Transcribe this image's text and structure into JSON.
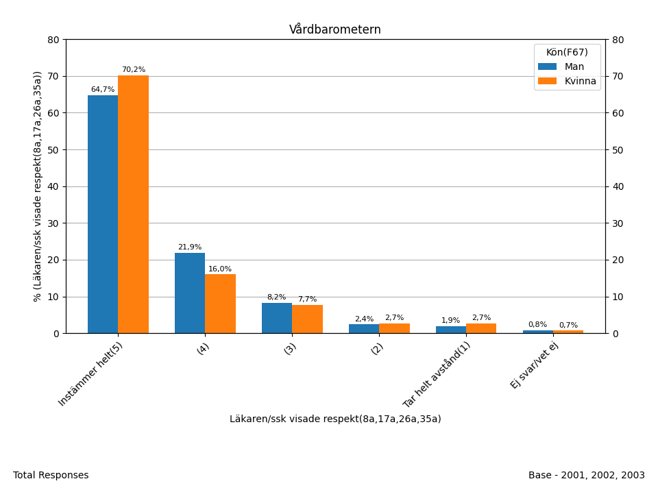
{
  "chart_data": {
    "type": "bar",
    "title": "Vårdbarometern",
    "x_label": "Läkaren/ssk visade respekt(8a,17a,26a,35a)",
    "y_label": "% (Läkaren/ssk visade respekt(8a,17a,26a,35a))",
    "categories": [
      "Instämmer helt(5)",
      "(4)",
      "(3)",
      "(2)",
      "Tar helt avstånd(1)",
      "Ej svar/vet ej"
    ],
    "series": [
      {
        "name": "Man",
        "values": [
          64.7,
          21.9,
          8.2,
          2.4,
          1.9,
          0.8
        ],
        "value_labels": [
          "64,7%",
          "21,9%",
          "8,2%",
          "2,4%",
          "1,9%",
          "0,8%"
        ]
      },
      {
        "name": "Kvinna",
        "values": [
          70.2,
          16.0,
          7.7,
          2.7,
          2.7,
          0.7
        ],
        "value_labels": [
          "70,2%",
          "16,0%",
          "7,7%",
          "2,7%",
          "2,7%",
          "0,7%"
        ]
      }
    ],
    "ylim": [
      0,
      80
    ],
    "yticks": [
      0,
      10,
      20,
      30,
      40,
      50,
      60,
      70,
      80
    ],
    "y2lim": [
      0,
      80
    ],
    "y2ticks": [
      0,
      10,
      20,
      30,
      40,
      50,
      60,
      70,
      80
    ],
    "legend_title": "Kön(F67)",
    "legend": "upper right",
    "grid": true,
    "data_labels": true,
    "annotations": [
      "Total Responses",
      "Base - 2001, 2002, 2003"
    ]
  }
}
